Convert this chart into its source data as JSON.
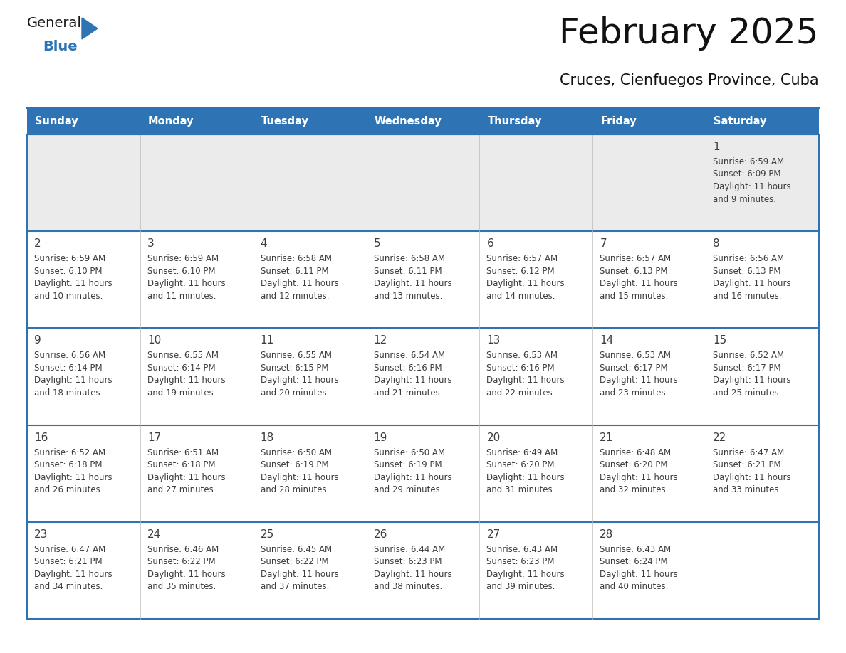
{
  "title": "February 2025",
  "subtitle": "Cruces, Cienfuegos Province, Cuba",
  "header_color": "#2E74B5",
  "header_text_color": "#FFFFFF",
  "row0_bg": "#EBEBEB",
  "cell_bg_even": "#FFFFFF",
  "cell_bg_odd": "#FFFFFF",
  "border_color": "#2E74B5",
  "thin_border_color": "#AAAAAA",
  "text_color": "#3C3C3C",
  "day_num_color": "#3C3C3C",
  "weekdays": [
    "Sunday",
    "Monday",
    "Tuesday",
    "Wednesday",
    "Thursday",
    "Friday",
    "Saturday"
  ],
  "days": [
    {
      "day": 1,
      "col": 6,
      "row": 0,
      "sunrise": "6:59 AM",
      "sunset": "6:09 PM",
      "daylight": "11 hours and 9 minutes."
    },
    {
      "day": 2,
      "col": 0,
      "row": 1,
      "sunrise": "6:59 AM",
      "sunset": "6:10 PM",
      "daylight": "11 hours and 10 minutes."
    },
    {
      "day": 3,
      "col": 1,
      "row": 1,
      "sunrise": "6:59 AM",
      "sunset": "6:10 PM",
      "daylight": "11 hours and 11 minutes."
    },
    {
      "day": 4,
      "col": 2,
      "row": 1,
      "sunrise": "6:58 AM",
      "sunset": "6:11 PM",
      "daylight": "11 hours and 12 minutes."
    },
    {
      "day": 5,
      "col": 3,
      "row": 1,
      "sunrise": "6:58 AM",
      "sunset": "6:11 PM",
      "daylight": "11 hours and 13 minutes."
    },
    {
      "day": 6,
      "col": 4,
      "row": 1,
      "sunrise": "6:57 AM",
      "sunset": "6:12 PM",
      "daylight": "11 hours and 14 minutes."
    },
    {
      "day": 7,
      "col": 5,
      "row": 1,
      "sunrise": "6:57 AM",
      "sunset": "6:13 PM",
      "daylight": "11 hours and 15 minutes."
    },
    {
      "day": 8,
      "col": 6,
      "row": 1,
      "sunrise": "6:56 AM",
      "sunset": "6:13 PM",
      "daylight": "11 hours and 16 minutes."
    },
    {
      "day": 9,
      "col": 0,
      "row": 2,
      "sunrise": "6:56 AM",
      "sunset": "6:14 PM",
      "daylight": "11 hours and 18 minutes."
    },
    {
      "day": 10,
      "col": 1,
      "row": 2,
      "sunrise": "6:55 AM",
      "sunset": "6:14 PM",
      "daylight": "11 hours and 19 minutes."
    },
    {
      "day": 11,
      "col": 2,
      "row": 2,
      "sunrise": "6:55 AM",
      "sunset": "6:15 PM",
      "daylight": "11 hours and 20 minutes."
    },
    {
      "day": 12,
      "col": 3,
      "row": 2,
      "sunrise": "6:54 AM",
      "sunset": "6:16 PM",
      "daylight": "11 hours and 21 minutes."
    },
    {
      "day": 13,
      "col": 4,
      "row": 2,
      "sunrise": "6:53 AM",
      "sunset": "6:16 PM",
      "daylight": "11 hours and 22 minutes."
    },
    {
      "day": 14,
      "col": 5,
      "row": 2,
      "sunrise": "6:53 AM",
      "sunset": "6:17 PM",
      "daylight": "11 hours and 23 minutes."
    },
    {
      "day": 15,
      "col": 6,
      "row": 2,
      "sunrise": "6:52 AM",
      "sunset": "6:17 PM",
      "daylight": "11 hours and 25 minutes."
    },
    {
      "day": 16,
      "col": 0,
      "row": 3,
      "sunrise": "6:52 AM",
      "sunset": "6:18 PM",
      "daylight": "11 hours and 26 minutes."
    },
    {
      "day": 17,
      "col": 1,
      "row": 3,
      "sunrise": "6:51 AM",
      "sunset": "6:18 PM",
      "daylight": "11 hours and 27 minutes."
    },
    {
      "day": 18,
      "col": 2,
      "row": 3,
      "sunrise": "6:50 AM",
      "sunset": "6:19 PM",
      "daylight": "11 hours and 28 minutes."
    },
    {
      "day": 19,
      "col": 3,
      "row": 3,
      "sunrise": "6:50 AM",
      "sunset": "6:19 PM",
      "daylight": "11 hours and 29 minutes."
    },
    {
      "day": 20,
      "col": 4,
      "row": 3,
      "sunrise": "6:49 AM",
      "sunset": "6:20 PM",
      "daylight": "11 hours and 31 minutes."
    },
    {
      "day": 21,
      "col": 5,
      "row": 3,
      "sunrise": "6:48 AM",
      "sunset": "6:20 PM",
      "daylight": "11 hours and 32 minutes."
    },
    {
      "day": 22,
      "col": 6,
      "row": 3,
      "sunrise": "6:47 AM",
      "sunset": "6:21 PM",
      "daylight": "11 hours and 33 minutes."
    },
    {
      "day": 23,
      "col": 0,
      "row": 4,
      "sunrise": "6:47 AM",
      "sunset": "6:21 PM",
      "daylight": "11 hours and 34 minutes."
    },
    {
      "day": 24,
      "col": 1,
      "row": 4,
      "sunrise": "6:46 AM",
      "sunset": "6:22 PM",
      "daylight": "11 hours and 35 minutes."
    },
    {
      "day": 25,
      "col": 2,
      "row": 4,
      "sunrise": "6:45 AM",
      "sunset": "6:22 PM",
      "daylight": "11 hours and 37 minutes."
    },
    {
      "day": 26,
      "col": 3,
      "row": 4,
      "sunrise": "6:44 AM",
      "sunset": "6:23 PM",
      "daylight": "11 hours and 38 minutes."
    },
    {
      "day": 27,
      "col": 4,
      "row": 4,
      "sunrise": "6:43 AM",
      "sunset": "6:23 PM",
      "daylight": "11 hours and 39 minutes."
    },
    {
      "day": 28,
      "col": 5,
      "row": 4,
      "sunrise": "6:43 AM",
      "sunset": "6:24 PM",
      "daylight": "11 hours and 40 minutes."
    }
  ],
  "num_rows": 5,
  "logo_text_general": "General",
  "logo_text_blue": "Blue",
  "logo_triangle_color": "#2E74B5",
  "logo_general_color": "#1a1a1a"
}
